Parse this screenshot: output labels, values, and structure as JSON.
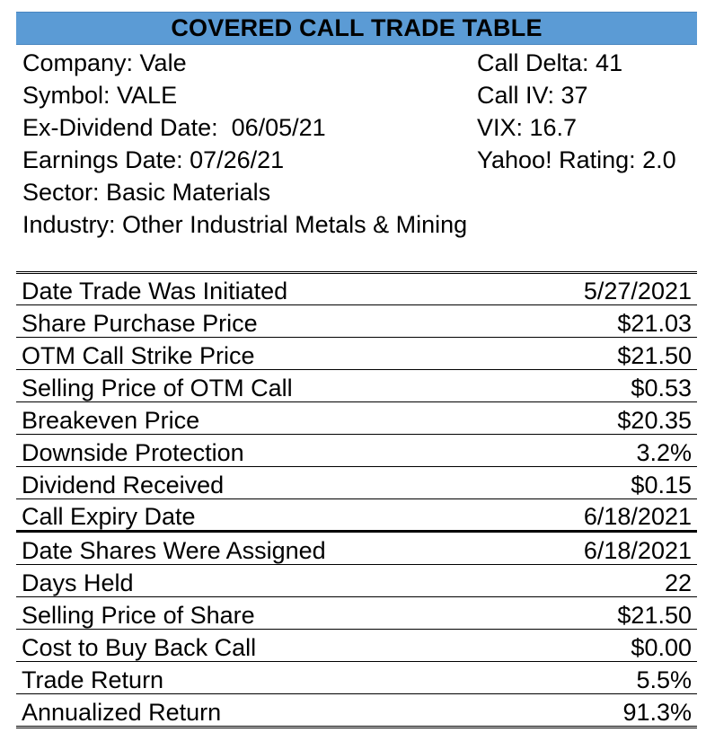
{
  "title": "COVERED CALL TRADE TABLE",
  "info_left": [
    "Company: Vale",
    "Symbol: VALE",
    "Ex-Dividend Date:  06/05/21",
    "Earnings Date: 07/26/21",
    "Sector: Basic Materials",
    "Industry: Other Industrial Metals & Mining"
  ],
  "info_right": [
    "Call Delta: 41",
    "Call IV: 37",
    "VIX: 16.7",
    "Yahoo! Rating: 2.0"
  ],
  "rows": [
    {
      "label": "Date Trade Was Initiated",
      "value": "5/27/2021"
    },
    {
      "label": "Share Purchase Price",
      "value": "$21.03"
    },
    {
      "label": "OTM Call Strike Price",
      "value": "$21.50"
    },
    {
      "label": "Selling Price of OTM Call",
      "value": "$0.53"
    },
    {
      "label": "Breakeven Price",
      "value": "$20.35"
    },
    {
      "label": "Downside Protection",
      "value": "3.2%"
    },
    {
      "label": "Dividend Received",
      "value": "$0.15"
    },
    {
      "label": "Call Expiry Date",
      "value": "6/18/2021"
    },
    {
      "label": "Date Shares Were Assigned",
      "value": "6/18/2021"
    },
    {
      "label": "Days Held",
      "value": "22"
    },
    {
      "label": "Selling Price of Share",
      "value": "$21.50"
    },
    {
      "label": "Cost to Buy Back Call",
      "value": "$0.00"
    },
    {
      "label": "Trade Return",
      "value": "5.5%"
    },
    {
      "label": "Annualized Return",
      "value": "91.3%"
    }
  ]
}
